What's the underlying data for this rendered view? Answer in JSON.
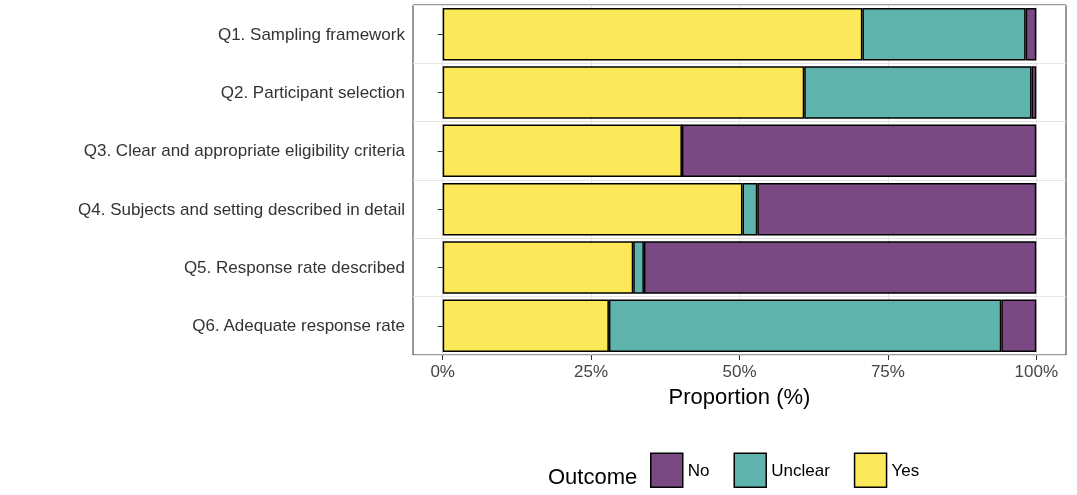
{
  "chart_data": {
    "type": "bar",
    "orientation": "horizontal",
    "stacked": true,
    "categories": [
      "Q1. Sampling framework",
      "Q2. Participant selection",
      "Q3. Clear and appropriate eligibility criteria",
      "Q4. Subjects and setting described in detail",
      "Q5. Response rate described",
      "Q6. Adequate response rate"
    ],
    "series": [
      {
        "name": "Yes",
        "color": "#fde85a",
        "values": [
          70.7,
          60.9,
          40.3,
          50.5,
          32.1,
          28.0
        ]
      },
      {
        "name": "Unclear",
        "color": "#5fb3ad",
        "values": [
          27.5,
          38.3,
          0,
          2.5,
          1.8,
          66.1
        ]
      },
      {
        "name": "No",
        "color": "#7a4984",
        "values": [
          1.8,
          0.8,
          59.7,
          47.0,
          66.1,
          5.9
        ]
      }
    ],
    "xlim": [
      -5,
      105
    ],
    "xticks": [
      {
        "value": 0,
        "label": "0%"
      },
      {
        "value": 25,
        "label": "25%"
      },
      {
        "value": 50,
        "label": "50%"
      },
      {
        "value": 75,
        "label": "75%"
      },
      {
        "value": 100,
        "label": "100%"
      }
    ],
    "xlabel": "Proportion (%)",
    "legend_title": "Outcome",
    "legend": "bottom",
    "grid": true
  }
}
